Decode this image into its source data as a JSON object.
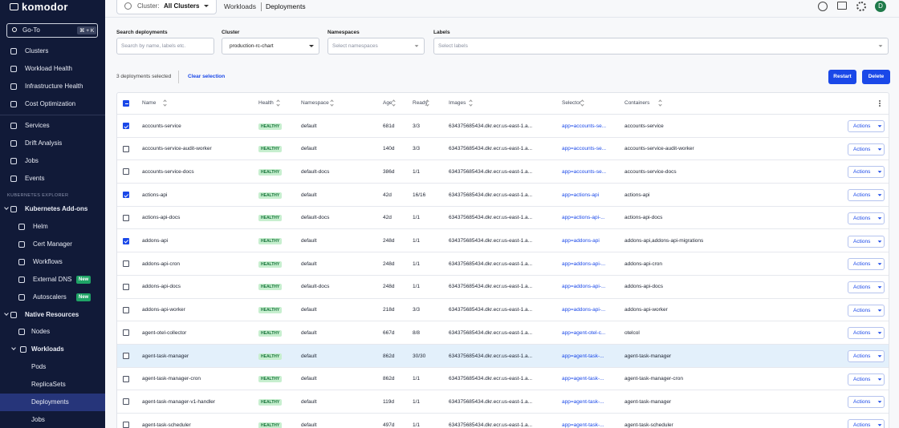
{
  "sidebar": {
    "logo": "komodor",
    "goto": "Go-To",
    "shortcut": "⌘ + K",
    "nav": [
      "Clusters",
      "Workload Health",
      "Infrastructure Health",
      "Cost Optimization"
    ],
    "tools": [
      "Services",
      "Drift Analysis",
      "Jobs",
      "Events"
    ],
    "section": "KUBERNETES EXPLORER",
    "addons": {
      "label": "Kubernetes Add-ons",
      "items": [
        {
          "label": "Helm"
        },
        {
          "label": "Cert Manager"
        },
        {
          "label": "Workflows"
        },
        {
          "label": "External DNS",
          "badge": "New"
        },
        {
          "label": "Autoscalers",
          "badge": "New"
        }
      ]
    },
    "native": {
      "label": "Native Resources",
      "items": [
        "Nodes"
      ],
      "workloads": {
        "label": "Workloads",
        "items": [
          "Pods",
          "ReplicaSets",
          "Deployments",
          "Jobs"
        ]
      }
    }
  },
  "topbar": {
    "cluster_label": "Cluster:",
    "cluster_value": "All Clusters",
    "breadcrumb": [
      "Workloads",
      "Deployments"
    ],
    "avatar": "D"
  },
  "filters": [
    {
      "label": "Search deployments",
      "placeholder": "Search by name, labels etc."
    },
    {
      "label": "Cluster",
      "value": "production-rc-chart"
    },
    {
      "label": "Namespaces",
      "placeholder": "Select namespaces"
    },
    {
      "label": "Labels",
      "placeholder": "Select labels"
    }
  ],
  "selection": {
    "text": "3 deployments selected",
    "clear": "Clear selection",
    "buttons": [
      "Restart",
      "Delete"
    ]
  },
  "table": {
    "columns": [
      "Name",
      "Health",
      "Namespace",
      "Age",
      "Ready",
      "Images",
      "Selector",
      "Containers"
    ],
    "rows": [
      {
        "selected": true,
        "name": "accounts-service",
        "health": "HEALTHY",
        "namespace": "default",
        "age": "681d",
        "ready": "3/3",
        "image": "634375685434.dkr.ecr.us-east-1.a...",
        "selector": "app=accounts-se...",
        "containers": "accounts-service",
        "action": "Actions"
      },
      {
        "selected": false,
        "name": "accounts-service-audit-worker",
        "health": "HEALTHY",
        "namespace": "default",
        "age": "140d",
        "ready": "3/3",
        "image": "634375685434.dkr.ecr.us-east-1.a...",
        "selector": "app=accounts-se...",
        "containers": "accounts-service-audit-worker",
        "action": "Actions"
      },
      {
        "selected": false,
        "name": "accounts-service-docs",
        "health": "HEALTHY",
        "namespace": "default-docs",
        "age": "386d",
        "ready": "1/1",
        "image": "634375685434.dkr.ecr.us-east-1.a...",
        "selector": "app=accounts-se...",
        "containers": "accounts-service-docs",
        "action": "Actions"
      },
      {
        "selected": true,
        "name": "actions-api",
        "health": "HEALTHY",
        "namespace": "default",
        "age": "42d",
        "ready": "16/16",
        "image": "634375685434.dkr.ecr.us-east-1.a...",
        "selector": "app=actions-api",
        "containers": "actions-api",
        "action": "Actions"
      },
      {
        "selected": false,
        "name": "actions-api-docs",
        "health": "HEALTHY",
        "namespace": "default-docs",
        "age": "42d",
        "ready": "1/1",
        "image": "634375685434.dkr.ecr.us-east-1.a...",
        "selector": "app=actions-api-...",
        "containers": "actions-api-docs",
        "action": "Actions"
      },
      {
        "selected": true,
        "name": "addons-api",
        "health": "HEALTHY",
        "namespace": "default",
        "age": "248d",
        "ready": "1/1",
        "image": "634375685434.dkr.ecr.us-east-1.a...",
        "selector": "app=addons-api",
        "containers": "addons-api,addons-api-migrations",
        "action": "Actions"
      },
      {
        "selected": false,
        "name": "addons-api-cron",
        "health": "HEALTHY",
        "namespace": "default",
        "age": "248d",
        "ready": "1/1",
        "image": "634375685434.dkr.ecr.us-east-1.a...",
        "selector": "app=addons-api-...",
        "containers": "addons-api-cron",
        "action": "Actions"
      },
      {
        "selected": false,
        "name": "addons-api-docs",
        "health": "HEALTHY",
        "namespace": "default-docs",
        "age": "248d",
        "ready": "1/1",
        "image": "634375685434.dkr.ecr.us-east-1.a...",
        "selector": "app=addons-api-...",
        "containers": "addons-api-docs",
        "action": "Actions"
      },
      {
        "selected": false,
        "name": "addons-api-worker",
        "health": "HEALTHY",
        "namespace": "default",
        "age": "218d",
        "ready": "3/3",
        "image": "634375685434.dkr.ecr.us-east-1.a...",
        "selector": "app=addons-api-...",
        "containers": "addons-api-worker",
        "action": "Actions"
      },
      {
        "selected": false,
        "name": "agent-otel-collector",
        "health": "HEALTHY",
        "namespace": "default",
        "age": "667d",
        "ready": "8/8",
        "image": "634375685434.dkr.ecr.us-east-1.a...",
        "selector": "app=agent-otel-c...",
        "containers": "otelcol",
        "action": "Actions"
      },
      {
        "selected": false,
        "name": "agent-task-manager",
        "health": "HEALTHY",
        "namespace": "default",
        "age": "862d",
        "ready": "30/30",
        "image": "634375685434.dkr.ecr.us-east-1.a...",
        "selector": "app=agent-task-...",
        "containers": "agent-task-manager",
        "action": "Actions"
      },
      {
        "selected": false,
        "name": "agent-task-manager-cron",
        "health": "HEALTHY",
        "namespace": "default",
        "age": "862d",
        "ready": "1/1",
        "image": "634375685434.dkr.ecr.us-east-1.a...",
        "selector": "app=agent-task-...",
        "containers": "agent-task-manager-cron",
        "action": "Actions"
      },
      {
        "selected": false,
        "name": "agent-task-manager-v1-handler",
        "health": "HEALTHY",
        "namespace": "default",
        "age": "119d",
        "ready": "1/1",
        "image": "634375685434.dkr.ecr.us-east-1.a...",
        "selector": "app=agent-task-...",
        "containers": "agent-task-manager",
        "action": "Actions"
      },
      {
        "selected": false,
        "name": "agent-task-scheduler",
        "health": "HEALTHY",
        "namespace": "default",
        "age": "497d",
        "ready": "1/1",
        "image": "634375685434.dkr.ecr.us-east-1.a...",
        "selector": "app=agent-task-...",
        "containers": "agent-task-scheduler",
        "action": "Actions"
      }
    ]
  }
}
